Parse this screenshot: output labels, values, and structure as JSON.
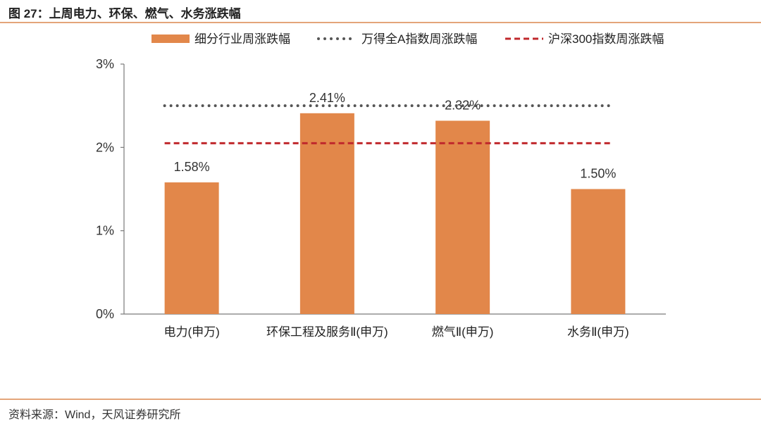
{
  "figure_title": "图 27：上周电力、环保、燃气、水务涨跌幅",
  "source_text": "资料来源：Wind，天风证券研究所",
  "colors": {
    "bar": "#e2874a",
    "index_a": "#555555",
    "index_hs300": "#c0282c",
    "accent_rule": "#e4a57a"
  },
  "chart_data": {
    "type": "bar",
    "categories": [
      "电力(申万)",
      "环保工程及服务Ⅱ(申万)",
      "燃气Ⅱ(申万)",
      "水务Ⅱ(申万)"
    ],
    "series": [
      {
        "name": "细分行业周涨跌幅",
        "values": [
          1.58,
          2.41,
          2.32,
          1.5
        ],
        "labels": [
          "1.58%",
          "2.41%",
          "2.32%",
          "1.50%"
        ]
      }
    ],
    "reference_lines": [
      {
        "name": "万得全A指数周涨跌幅",
        "value": 2.5,
        "style": "dotted"
      },
      {
        "name": "沪深300指数周涨跌幅",
        "value": 2.05,
        "style": "dashed"
      }
    ],
    "ylim": [
      0,
      3
    ],
    "yticks": [
      0,
      1,
      2,
      3
    ],
    "ytick_labels": [
      "0%",
      "1%",
      "2%",
      "3%"
    ],
    "title": "",
    "xlabel": "",
    "ylabel": "",
    "grid": false,
    "legend_position": "top"
  }
}
